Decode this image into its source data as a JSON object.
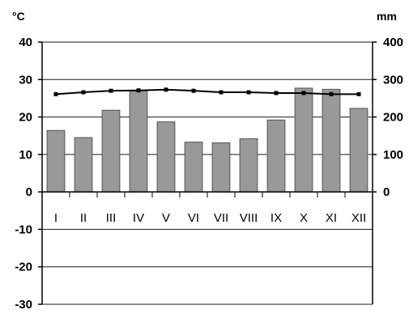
{
  "chart_data": {
    "type": "bar",
    "left_unit": "°C",
    "right_unit": "mm",
    "categories": [
      "I",
      "II",
      "III",
      "IV",
      "V",
      "VI",
      "VII",
      "VIII",
      "IX",
      "X",
      "XI",
      "XII"
    ],
    "left_axis": {
      "ylim": [
        -30,
        40
      ],
      "ticks": [
        "40",
        "30",
        "20",
        "10",
        "0",
        "-10",
        "-20",
        "-30"
      ]
    },
    "right_axis": {
      "ylim": [
        0,
        400
      ],
      "ticks": [
        "400",
        "300",
        "200",
        "100",
        "0"
      ]
    },
    "series": [
      {
        "kind": "bar",
        "axis": "right",
        "color": "#999999",
        "values": [
          164,
          145,
          218,
          270,
          187,
          133,
          131,
          142,
          192,
          277,
          274,
          223
        ]
      },
      {
        "kind": "line",
        "axis": "left",
        "color": "#000000",
        "values": [
          26.1,
          26.6,
          27.0,
          27.1,
          27.3,
          27.0,
          26.6,
          26.6,
          26.4,
          26.4,
          26.1,
          26.1
        ]
      }
    ],
    "grid": true
  }
}
